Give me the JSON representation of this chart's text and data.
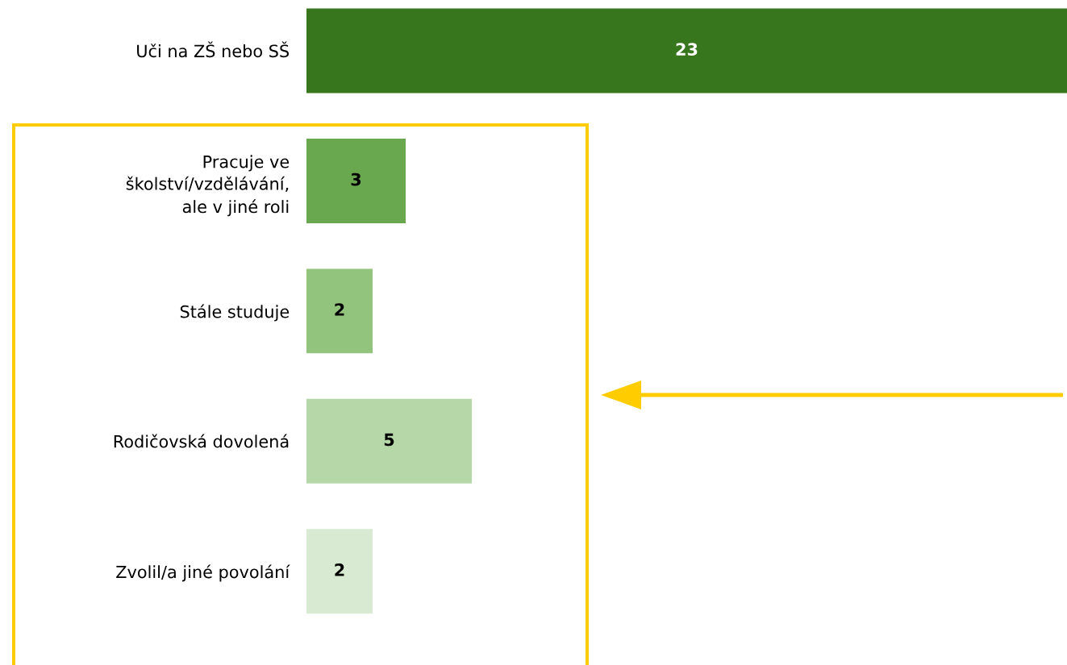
{
  "chart_data": {
    "type": "bar",
    "orientation": "horizontal",
    "categories": [
      "Uči na ZŠ nebo SŠ",
      "Pracuje ve\nškolství/vzdělávání,\nale v jiné roli",
      "Stále studuje",
      "Rodičovská dovolená",
      "Zvolil/a jiné povolání"
    ],
    "values": [
      23,
      3,
      2,
      5,
      2
    ],
    "colors": [
      "#38761d",
      "#6aa84f",
      "#93c47d",
      "#b6d7a8",
      "#d9ead3"
    ],
    "xlim": [
      0,
      23
    ],
    "data_labels": true,
    "tick_labels": "y",
    "grid": false,
    "legend": false
  }
}
